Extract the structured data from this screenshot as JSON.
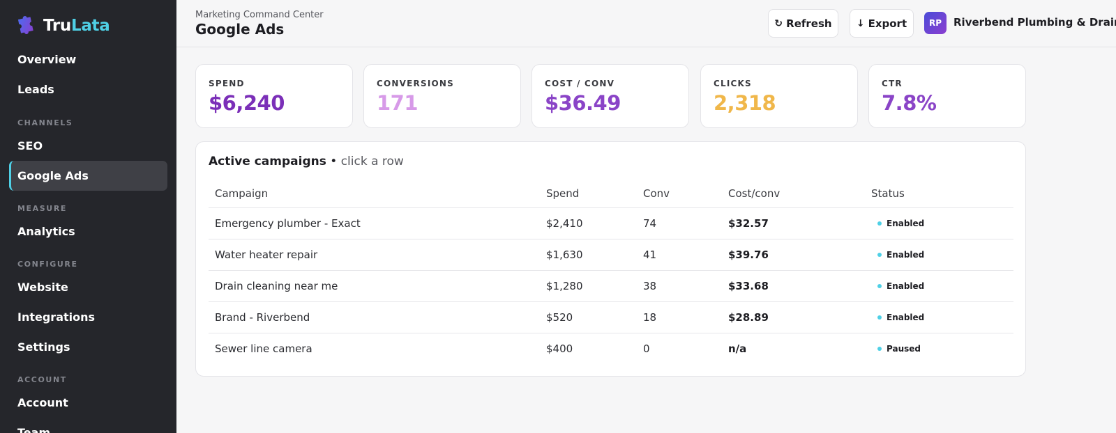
{
  "brand": {
    "name_part1": "Tru",
    "name_part2": "Lata",
    "logo_icon": "puzzle-icon"
  },
  "sidebar": {
    "items": [
      {
        "label": "Overview"
      },
      {
        "label": "Leads"
      },
      {
        "section": "CHANNELS"
      },
      {
        "label": "SEO"
      },
      {
        "label": "Google Ads",
        "active": true
      },
      {
        "section": "MEASURE"
      },
      {
        "label": "Analytics"
      },
      {
        "section": "CONFIGURE"
      },
      {
        "label": "Website"
      },
      {
        "label": "Integrations"
      },
      {
        "label": "Settings"
      },
      {
        "section": "ACCOUNT"
      },
      {
        "label": "Account"
      },
      {
        "label": "Team"
      }
    ]
  },
  "header": {
    "breadcrumb": "Marketing Command Center",
    "title": "Google Ads",
    "refresh_label": "Refresh",
    "refresh_icon": "refresh-icon",
    "export_label": "Export",
    "export_icon": "arrow-down-icon",
    "avatar_initials": "RP",
    "client_name": "Riverbend Plumbing & Drain"
  },
  "kpis": [
    {
      "label": "SPEND",
      "value": "$6,240",
      "color": "#7b2fb8"
    },
    {
      "label": "CONVERSIONS",
      "value": "171",
      "color": "#d79ae8"
    },
    {
      "label": "COST / CONV",
      "value": "$36.49",
      "color": "#8a44c7"
    },
    {
      "label": "CLICKS",
      "value": "2,318",
      "color": "#f0b74a"
    },
    {
      "label": "CTR",
      "value": "7.8%",
      "color": "#8a44c7"
    }
  ],
  "campaigns": {
    "title": "Active campaigns",
    "hint": "click a row",
    "columns": [
      "Campaign",
      "Spend",
      "Conv",
      "Cost/conv",
      "Status"
    ],
    "rows": [
      {
        "campaign": "Emergency plumber - Exact",
        "spend": "$2,410",
        "conv": "74",
        "cost_conv": "$32.57",
        "status": "Enabled"
      },
      {
        "campaign": "Water heater repair",
        "spend": "$1,630",
        "conv": "41",
        "cost_conv": "$39.76",
        "status": "Enabled"
      },
      {
        "campaign": "Drain cleaning near me",
        "spend": "$1,280",
        "conv": "38",
        "cost_conv": "$33.68",
        "status": "Enabled"
      },
      {
        "campaign": "Brand - Riverbend",
        "spend": "$520",
        "conv": "18",
        "cost_conv": "$28.89",
        "status": "Enabled"
      },
      {
        "campaign": "Sewer line camera",
        "spend": "$400",
        "conv": "0",
        "cost_conv": "n/a",
        "status": "Paused"
      }
    ],
    "status_color": "#4fd0e6"
  },
  "colors": {
    "sidebar_bg": "#25262b",
    "accent": "#4fd0e6",
    "page_bg": "#f6f6f7"
  }
}
